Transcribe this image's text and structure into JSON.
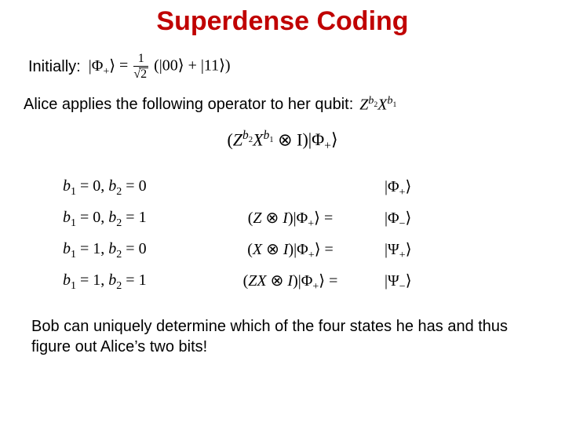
{
  "title": {
    "text": "Superdense Coding",
    "color": "#c00000",
    "fontsize": 34
  },
  "initially_label": "Initially:",
  "initial_state_lhs": "|Φ",
  "initial_state_sub": "+",
  "initial_state_ket_close": "⟩ = ",
  "frac_num": "1",
  "frac_den_sqrt": "2",
  "initial_paren": "(|00⟩ + |11⟩)",
  "alice_text": "Alice applies the following operator to her qubit:",
  "alice_operator_Z": "Z",
  "alice_operator_b2": "b",
  "alice_operator_b2sub": "2",
  "alice_operator_X": "X",
  "alice_operator_b1": "b",
  "alice_operator_b1sub": "1",
  "center_eq_open": "(",
  "center_eq_tensor": " ⊗ I",
  "center_eq_close": ")|Φ",
  "center_eq_sub": "+",
  "center_eq_ket": "⟩",
  "cases": [
    {
      "b1": "0",
      "b2": "0",
      "op": "",
      "res_sym": "Φ",
      "res_sub": "+"
    },
    {
      "b1": "0",
      "b2": "1",
      "op": "(Z ⊗ I)|Φ",
      "res_sym": "Φ",
      "res_sub": "−"
    },
    {
      "b1": "1",
      "b2": "0",
      "op": "(X ⊗ I)|Φ",
      "res_sym": "Ψ",
      "res_sub": "+"
    },
    {
      "b1": "1",
      "b2": "1",
      "op": "(ZX ⊗ I)|Φ",
      "res_sym": "Ψ",
      "res_sub": "−"
    }
  ],
  "case_eq_suffix": "⟩ = ",
  "case_phi_sub": "+",
  "case_b1_label": "b",
  "case_b2_label": "b",
  "bottom_text": "Bob can uniquely determine which of the four states he has and thus figure out Alice’s two bits!",
  "colors": {
    "title": "#c00000",
    "text": "#000000",
    "background": "#ffffff"
  }
}
